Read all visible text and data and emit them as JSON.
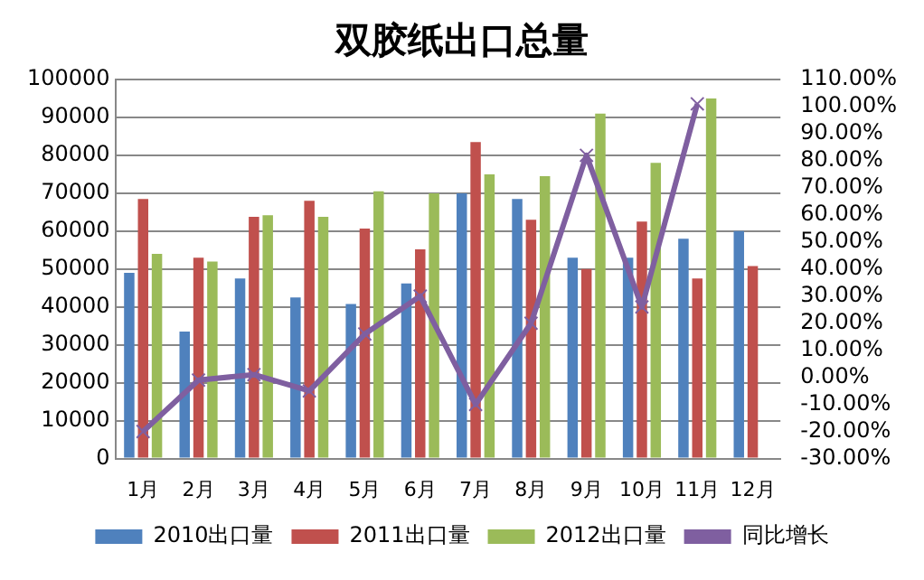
{
  "chart_data": {
    "type": "bar",
    "title": "双胶纸出口总量",
    "categories": [
      "1月",
      "2月",
      "3月",
      "4月",
      "5月",
      "6月",
      "7月",
      "8月",
      "9月",
      "10月",
      "11月",
      "12月"
    ],
    "series": [
      {
        "name": "2010出口量",
        "color": "#4f81bd",
        "values": [
          49000,
          33500,
          47500,
          42500,
          40800,
          46200,
          70000,
          68500,
          53000,
          53000,
          58000,
          60000
        ]
      },
      {
        "name": "2011出口量",
        "color": "#c0504d",
        "values": [
          68500,
          53000,
          63800,
          68000,
          60700,
          55200,
          83500,
          63000,
          50000,
          62500,
          47500,
          50800
        ]
      },
      {
        "name": "2012出口量",
        "color": "#9bbb59",
        "values": [
          54000,
          52000,
          64200,
          63800,
          70500,
          70000,
          75000,
          74500,
          91000,
          78000,
          95000,
          null
        ]
      },
      {
        "name": "同比增长",
        "type": "line",
        "axis": "y2",
        "color": "#7f5fa0",
        "marker": "cross",
        "values": [
          -20,
          -1,
          1,
          -5,
          16,
          30,
          -10,
          20,
          82,
          26,
          101,
          null
        ]
      }
    ],
    "ylim": [
      0,
      100000
    ],
    "yticks": [
      0,
      10000,
      20000,
      30000,
      40000,
      50000,
      60000,
      70000,
      80000,
      90000,
      100000
    ],
    "y2lim": [
      -30,
      110
    ],
    "y2ticks": [
      {
        "value": -30,
        "label": "-30.00%"
      },
      {
        "value": -20,
        "label": "-20.00%"
      },
      {
        "value": -10,
        "label": "-10.00%"
      },
      {
        "value": 0,
        "label": "0.00%"
      },
      {
        "value": 10,
        "label": "10.00%"
      },
      {
        "value": 20,
        "label": "20.00%"
      },
      {
        "value": 30,
        "label": "30.00%"
      },
      {
        "value": 40,
        "label": "40.00%"
      },
      {
        "value": 50,
        "label": "50.00%"
      },
      {
        "value": 60,
        "label": "60.00%"
      },
      {
        "value": 70,
        "label": "70.00%"
      },
      {
        "value": 80,
        "label": "80.00%"
      },
      {
        "value": 90,
        "label": "90.00%"
      },
      {
        "value": 100,
        "label": "100.00%"
      },
      {
        "value": 110,
        "label": "110.00%"
      }
    ],
    "grid": "y",
    "legend": "bottom"
  }
}
